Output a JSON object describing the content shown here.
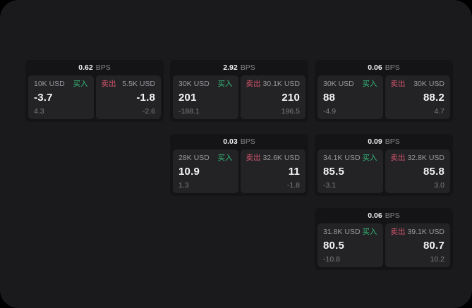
{
  "labels": {
    "buy": "买入",
    "sell": "卖出",
    "bps_unit": "BPS"
  },
  "colors": {
    "page_background": "#1a1a1c",
    "card_background": "#141416",
    "panel_background": "#232326",
    "buy_accent": "#35b877",
    "sell_accent": "#d9566e",
    "primary_text": "#f4f4f5",
    "secondary_text": "#99999d",
    "muted_text": "#7d7d82"
  },
  "cards": [
    {
      "bps": "0.62",
      "buy": {
        "amount": "10K USD",
        "value": "-3.7",
        "sub": "4.3"
      },
      "sell": {
        "amount": "5.5K USD",
        "value": "-1.8",
        "sub": "-2.6"
      }
    },
    {
      "bps": "2.92",
      "buy": {
        "amount": "30K USD",
        "value": "201",
        "sub": "-188.1"
      },
      "sell": {
        "amount": "30.1K USD",
        "value": "210",
        "sub": "196.5"
      }
    },
    {
      "bps": "0.06",
      "buy": {
        "amount": "30K USD",
        "value": "88",
        "sub": "-4.9"
      },
      "sell": {
        "amount": "30K USD",
        "value": "88.2",
        "sub": "4.7"
      }
    },
    {
      "bps": "0.03",
      "buy": {
        "amount": "28K USD",
        "value": "10.9",
        "sub": "1.3"
      },
      "sell": {
        "amount": "32.6K USD",
        "value": "11",
        "sub": "-1.8"
      }
    },
    {
      "bps": "0.09",
      "buy": {
        "amount": "34.1K USD",
        "value": "85.5",
        "sub": "-3.1"
      },
      "sell": {
        "amount": "32.8K USD",
        "value": "85.8",
        "sub": "3.0"
      }
    },
    {
      "bps": "0.06",
      "buy": {
        "amount": "31.8K USD",
        "value": "80.5",
        "sub": "-10.8"
      },
      "sell": {
        "amount": "39.1K USD",
        "value": "80.7",
        "sub": "10.2"
      }
    }
  ]
}
